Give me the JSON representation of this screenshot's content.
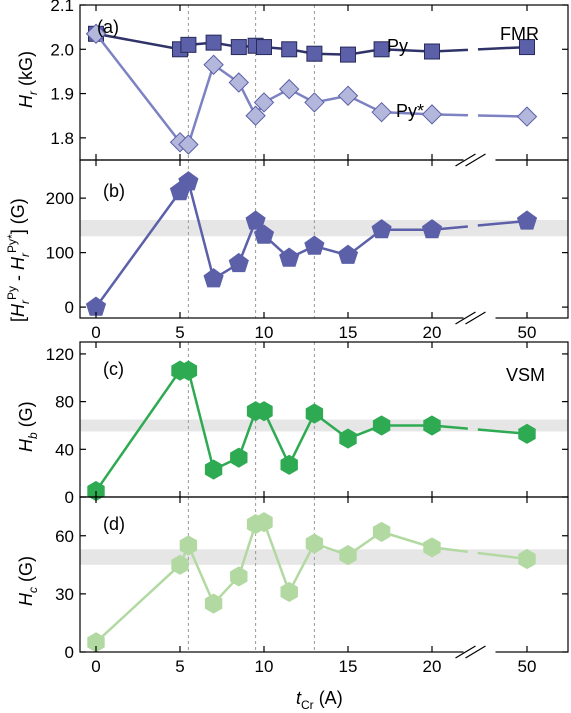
{
  "chart_data": [
    {
      "type": "scatter",
      "panel_label": "(a)",
      "ylabel": "H_r (kG)",
      "ylabel_main": "H",
      "ylabel_sub": "r",
      "ylabel_unit": " (kG)",
      "ylim": [
        1.75,
        2.1
      ],
      "yticks": [
        1.8,
        1.9,
        2.0,
        2.1
      ],
      "ytick_labels": [
        "1.8",
        "1.9",
        "2.0",
        "2.1"
      ],
      "corner_text": "FMR",
      "series": [
        {
          "name": "Py",
          "marker": "square",
          "color": "#5b60a8",
          "x": [
            0,
            5,
            5.5,
            7,
            8.5,
            9.5,
            10,
            11.5,
            13,
            15,
            17,
            20,
            50
          ],
          "y": [
            2.035,
            2.0,
            2.01,
            2.015,
            2.005,
            2.008,
            2.005,
            2.0,
            1.99,
            1.988,
            2.0,
            1.995,
            2.005
          ]
        },
        {
          "name": "Py*",
          "marker": "diamond",
          "color": "#b4b7dc",
          "x": [
            0,
            5,
            5.5,
            7,
            8.5,
            9.5,
            10,
            11.5,
            13,
            15,
            17,
            20,
            50
          ],
          "y": [
            2.035,
            1.79,
            1.785,
            1.965,
            1.925,
            1.85,
            1.88,
            1.91,
            1.88,
            1.895,
            1.858,
            1.853,
            1.848
          ]
        }
      ]
    },
    {
      "type": "line",
      "panel_label": "(b)",
      "ylabel": "[H_r^Py - H_r^Py*] (G)",
      "ylim": [
        -20,
        270
      ],
      "yticks": [
        0,
        100,
        200
      ],
      "ytick_labels": [
        "0",
        "100",
        "200"
      ],
      "band": [
        130,
        160
      ],
      "series": [
        {
          "marker": "pentagon",
          "color": "#5b60a8",
          "x": [
            0,
            5,
            5.5,
            7,
            8.5,
            9.5,
            10,
            11.5,
            13,
            15,
            17,
            20,
            50
          ],
          "y": [
            0,
            212,
            230,
            52,
            80,
            158,
            132,
            90,
            112,
            95,
            142,
            142,
            158
          ]
        }
      ]
    },
    {
      "type": "line",
      "panel_label": "(c)",
      "ylabel": "H_b (G)",
      "ylabel_main": "H",
      "ylabel_sub": "b",
      "ylabel_unit": " (G)",
      "ylim": [
        0,
        130
      ],
      "yticks": [
        0,
        40,
        80,
        120
      ],
      "ytick_labels": [
        "0",
        "40",
        "80",
        "120"
      ],
      "corner_text": "VSM",
      "band": [
        55,
        65
      ],
      "series": [
        {
          "marker": "hexagon",
          "color": "#2eaa52",
          "x": [
            0,
            5,
            5.5,
            7,
            8.5,
            9.5,
            10,
            11.5,
            13,
            15,
            17,
            20,
            50
          ],
          "y": [
            5,
            106,
            106,
            23,
            33,
            72,
            72,
            27,
            70,
            49,
            60,
            60,
            53
          ]
        }
      ]
    },
    {
      "type": "line",
      "panel_label": "(d)",
      "ylabel": "H_c (G)",
      "ylabel_main": "H",
      "ylabel_sub": "c",
      "ylabel_unit": " (G)",
      "ylim": [
        0,
        80
      ],
      "yticks": [
        0,
        30,
        60
      ],
      "ytick_labels": [
        "0",
        "30",
        "60"
      ],
      "band": [
        45,
        53
      ],
      "series": [
        {
          "marker": "hexagon",
          "color": "#b2d9a2",
          "x": [
            0,
            5,
            5.5,
            7,
            8.5,
            9.5,
            10,
            11.5,
            13,
            15,
            17,
            20,
            50
          ],
          "y": [
            5,
            45,
            55,
            25,
            39,
            66,
            67,
            31,
            56,
            50,
            62,
            54,
            48
          ]
        }
      ]
    }
  ],
  "x_axis": {
    "label": "t_Cr (A)",
    "label_main": "t",
    "label_sub": "Cr",
    "label_unit": " (A)",
    "ticks": [
      0,
      5,
      10,
      15,
      20,
      50
    ],
    "tick_labels": [
      "0",
      "5",
      "10",
      "15",
      "20",
      "50"
    ],
    "break_between": [
      20,
      50
    ]
  },
  "vertical_reference_lines": [
    5.5,
    9.5,
    13
  ]
}
